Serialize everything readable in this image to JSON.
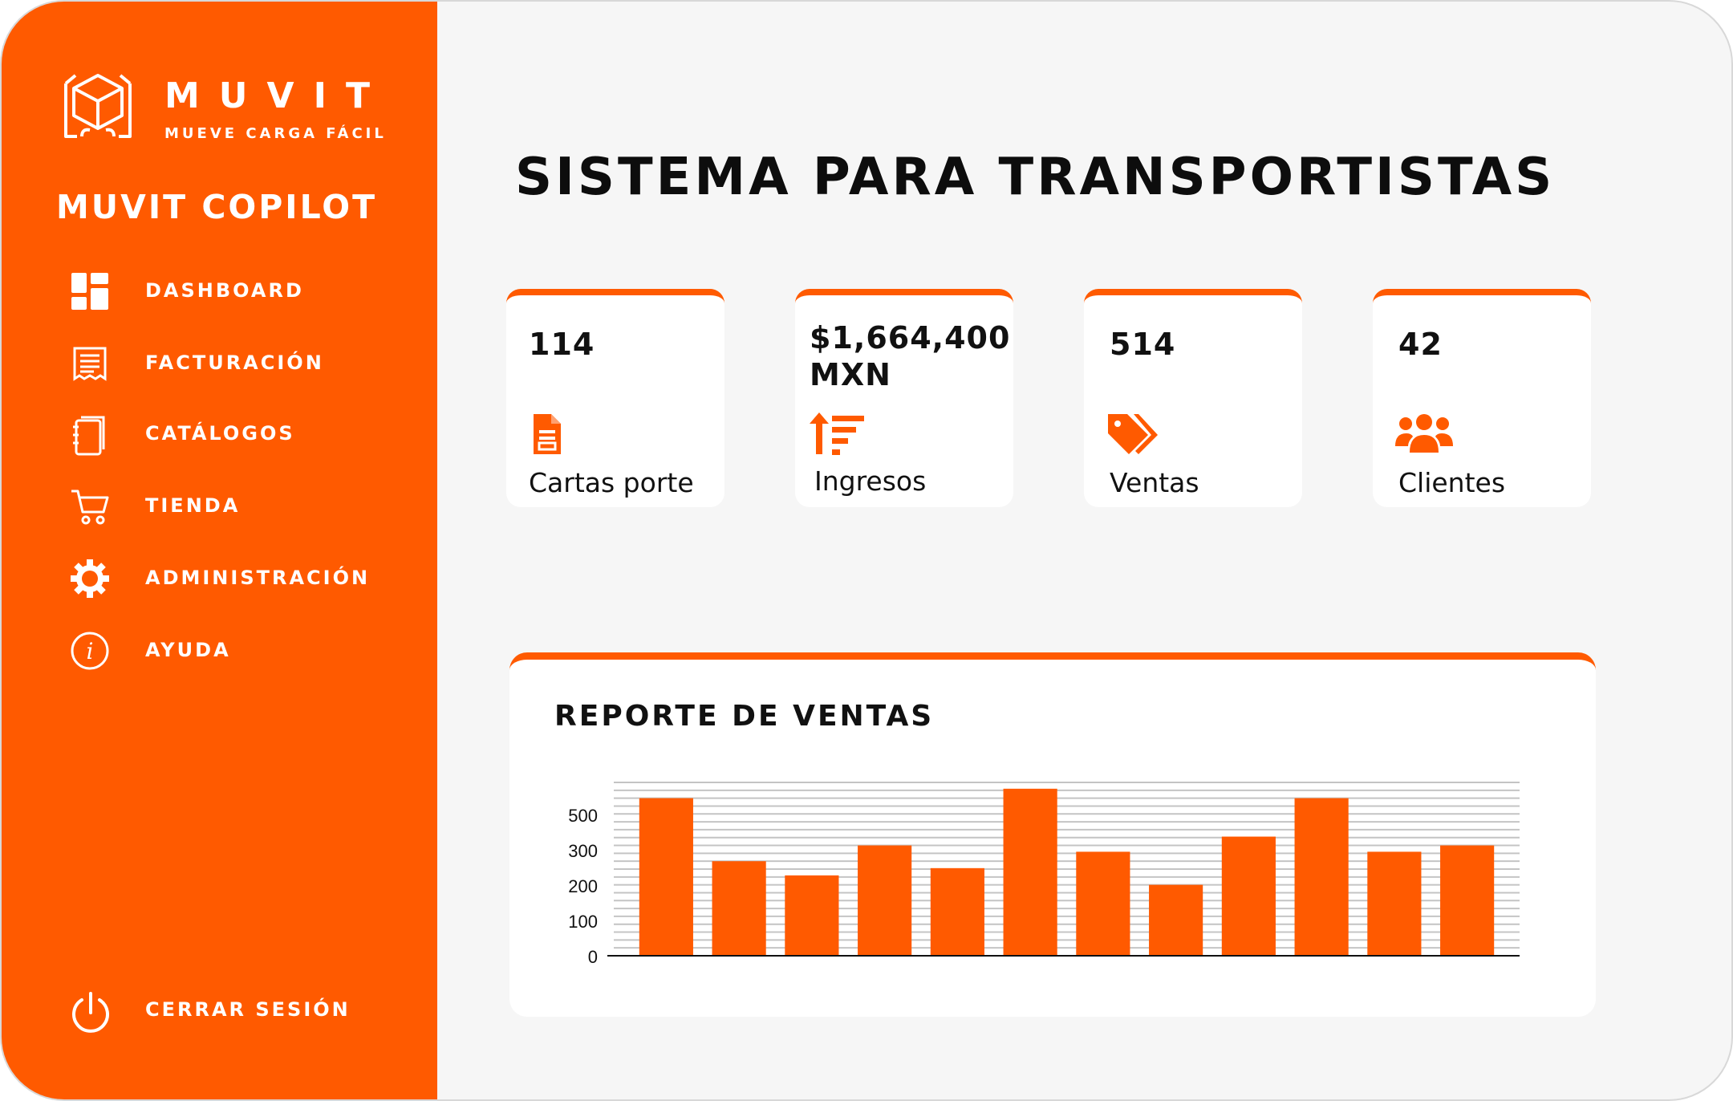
{
  "brand": {
    "name": "MUVIT",
    "tagline": "MUEVE CARGA FÁCIL",
    "app_title": "MUVIT COPILOT"
  },
  "colors": {
    "accent": "#ff5a00",
    "background": "#f6f6f6",
    "card": "#ffffff",
    "text": "#111111"
  },
  "sidebar": {
    "items": [
      {
        "label": "DASHBOARD",
        "icon": "dashboard-grid-icon"
      },
      {
        "label": "FACTURACIÓN",
        "icon": "invoice-icon"
      },
      {
        "label": "CATÁLOGOS",
        "icon": "notebook-icon"
      },
      {
        "label": "TIENDA",
        "icon": "cart-icon"
      },
      {
        "label": "ADMINISTRACIÓN",
        "icon": "gear-icon"
      },
      {
        "label": "AYUDA",
        "icon": "info-icon"
      }
    ],
    "logout": {
      "label": "CERRAR SESIÓN",
      "icon": "power-icon"
    }
  },
  "main": {
    "title": "SISTEMA PARA TRANSPORTISTAS",
    "stats": [
      {
        "value": "114",
        "label": "Cartas porte",
        "icon": "document-icon"
      },
      {
        "value": "$1,664,400 MXN",
        "label": "Ingresos",
        "icon": "sort-up-icon"
      },
      {
        "value": "514",
        "label": "Ventas",
        "icon": "tags-icon"
      },
      {
        "value": "42",
        "label": "Clientes",
        "icon": "users-icon"
      }
    ]
  },
  "report": {
    "title": "REPORTE DE VENTAS"
  },
  "chart_data": {
    "type": "bar",
    "title": "REPORTE DE VENTAS",
    "xlabel": "",
    "ylabel": "",
    "categories": [
      "",
      "",
      "",
      "",
      "",
      "",
      "",
      "",
      "",
      "",
      "",
      ""
    ],
    "values": [
      500,
      300,
      255,
      350,
      278,
      530,
      330,
      225,
      378,
      500,
      330,
      350
    ],
    "y_tick_labels": [
      "0",
      "100",
      "200",
      "300",
      "500"
    ],
    "ylim": [
      0,
      550
    ],
    "grid": true,
    "color": "#ff5a00"
  }
}
